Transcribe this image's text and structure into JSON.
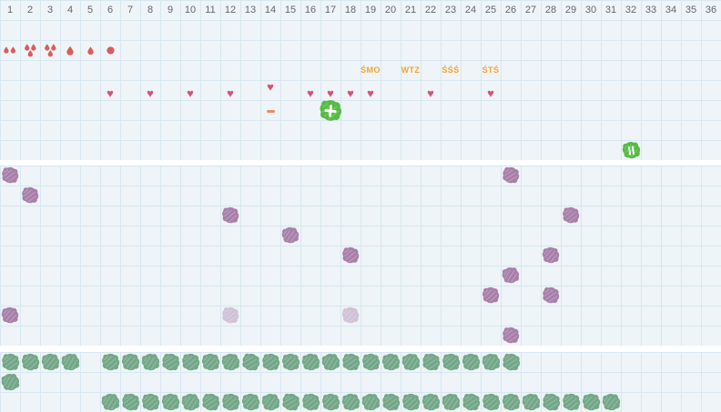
{
  "app": {
    "title": "cycle tracker calendar grid"
  },
  "colors": {
    "background": "#eef4f7",
    "grid_line": "#d7e7f0",
    "separator_white": "#ffffff",
    "day_number": "#5e6972",
    "blood_red": "#d95d5d",
    "heart_pink": "#d85079",
    "label_orange": "#f4a42f",
    "dash_orange": "#f08a5c",
    "bright_green": "#56ba45",
    "bright_green_texture": "#7ccf6d",
    "purple": "#a87fa9",
    "purple_texture": "#c5a7c7",
    "sage_green": "#74a787",
    "sage_green_texture": "#99c3aa"
  },
  "header": {
    "days": [
      "1",
      "2",
      "3",
      "4",
      "5",
      "6",
      "7",
      "8",
      "9",
      "10",
      "11",
      "12",
      "13",
      "14",
      "15",
      "16",
      "17",
      "18",
      "19",
      "20",
      "21",
      "22",
      "23",
      "24",
      "25",
      "26",
      "27",
      "28",
      "29",
      "30",
      "31",
      "32",
      "33",
      "34",
      "35",
      "36"
    ]
  },
  "calendar": {
    "bleeding_marks": [
      {
        "col": 1,
        "icon": "drops-2"
      },
      {
        "col": 2,
        "icon": "drops-3"
      },
      {
        "col": 3,
        "icon": "drops-3"
      },
      {
        "col": 4,
        "icon": "drop"
      },
      {
        "col": 5,
        "icon": "drop-small"
      },
      {
        "col": 6,
        "icon": "dot"
      }
    ],
    "labels": [
      {
        "col": 19,
        "text": "ŚMO"
      },
      {
        "col": 21,
        "text": "WTZ"
      },
      {
        "col": 23,
        "text": "ŚŚŚ"
      },
      {
        "col": 25,
        "text": "ŚTŚ"
      }
    ],
    "hearts": [
      {
        "col": 6
      },
      {
        "col": 8
      },
      {
        "col": 10
      },
      {
        "col": 12
      },
      {
        "col": 14,
        "raised": true
      },
      {
        "col": 16
      },
      {
        "col": 17
      },
      {
        "col": 18
      },
      {
        "col": 19
      },
      {
        "col": 22
      },
      {
        "col": 25
      }
    ],
    "dash": {
      "col": 14,
      "icon": "dash"
    },
    "positive_test": {
      "col": 17,
      "icon": "green-blob-plus"
    },
    "pause": {
      "col": 32,
      "icon": "green-blob-pause"
    }
  },
  "purple_section": {
    "rows": 9,
    "blobs": [
      {
        "col": 1,
        "row": 0
      },
      {
        "col": 26,
        "row": 0
      },
      {
        "col": 2,
        "row": 1
      },
      {
        "col": 12,
        "row": 2
      },
      {
        "col": 29,
        "row": 2
      },
      {
        "col": 15,
        "row": 3
      },
      {
        "col": 18,
        "row": 4
      },
      {
        "col": 28,
        "row": 4
      },
      {
        "col": 26,
        "row": 5
      },
      {
        "col": 25,
        "row": 6
      },
      {
        "col": 28,
        "row": 6
      },
      {
        "col": 1,
        "row": 7
      },
      {
        "col": 12,
        "row": 7,
        "faint": true
      },
      {
        "col": 18,
        "row": 7,
        "faint": true
      },
      {
        "col": 26,
        "row": 8
      }
    ]
  },
  "green_section": {
    "rows": 3,
    "blob_rows": [
      {
        "row": 0,
        "cols": [
          1,
          2,
          3,
          4,
          6,
          7,
          8,
          9,
          10,
          11,
          12,
          13,
          14,
          15,
          16,
          17,
          18,
          19,
          20,
          21,
          22,
          23,
          24,
          25,
          26
        ]
      },
      {
        "row": 1,
        "cols": [
          1
        ]
      },
      {
        "row": 2,
        "cols": [
          6,
          7,
          8,
          9,
          10,
          11,
          12,
          13,
          14,
          15,
          16,
          17,
          18,
          19,
          20,
          21,
          22,
          23,
          24,
          25,
          26,
          27,
          28,
          29,
          30,
          31
        ]
      }
    ]
  }
}
